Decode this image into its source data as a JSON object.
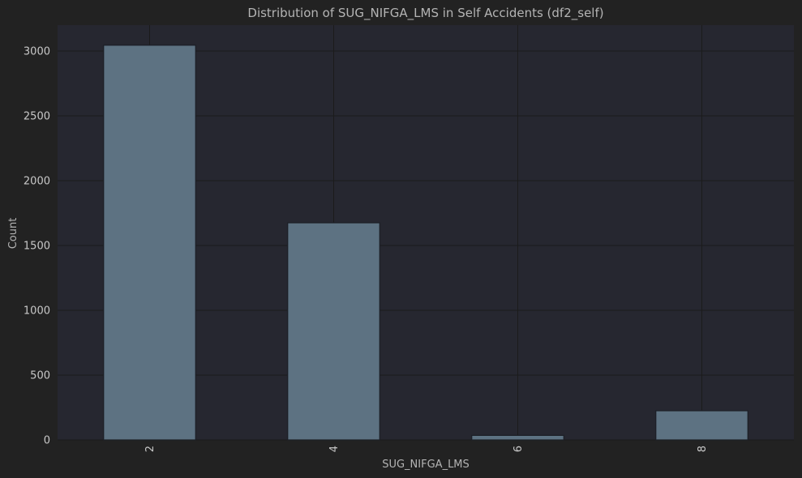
{
  "chart_data": {
    "type": "bar",
    "title": "Distribution of SUG_NIFGA_LMS in Self Accidents (df2_self)",
    "xlabel": "SUG_NIFGA_LMS",
    "ylabel": "Count",
    "categories": [
      "2",
      "4",
      "6",
      "8"
    ],
    "values": [
      3045,
      1675,
      35,
      225
    ],
    "ylim": [
      0,
      3200
    ],
    "yticks": [
      0,
      500,
      1000,
      1500,
      2000,
      2500,
      3000
    ],
    "xtick_rotation": "vertical",
    "grid": true,
    "legend": "none",
    "colors": {
      "background": "#222222",
      "plot_area": "#262730",
      "bar": "#5d7282",
      "bar_edge": "#1c1f26",
      "grid": "#1b1b1b",
      "text": "#b4b4b4"
    }
  }
}
